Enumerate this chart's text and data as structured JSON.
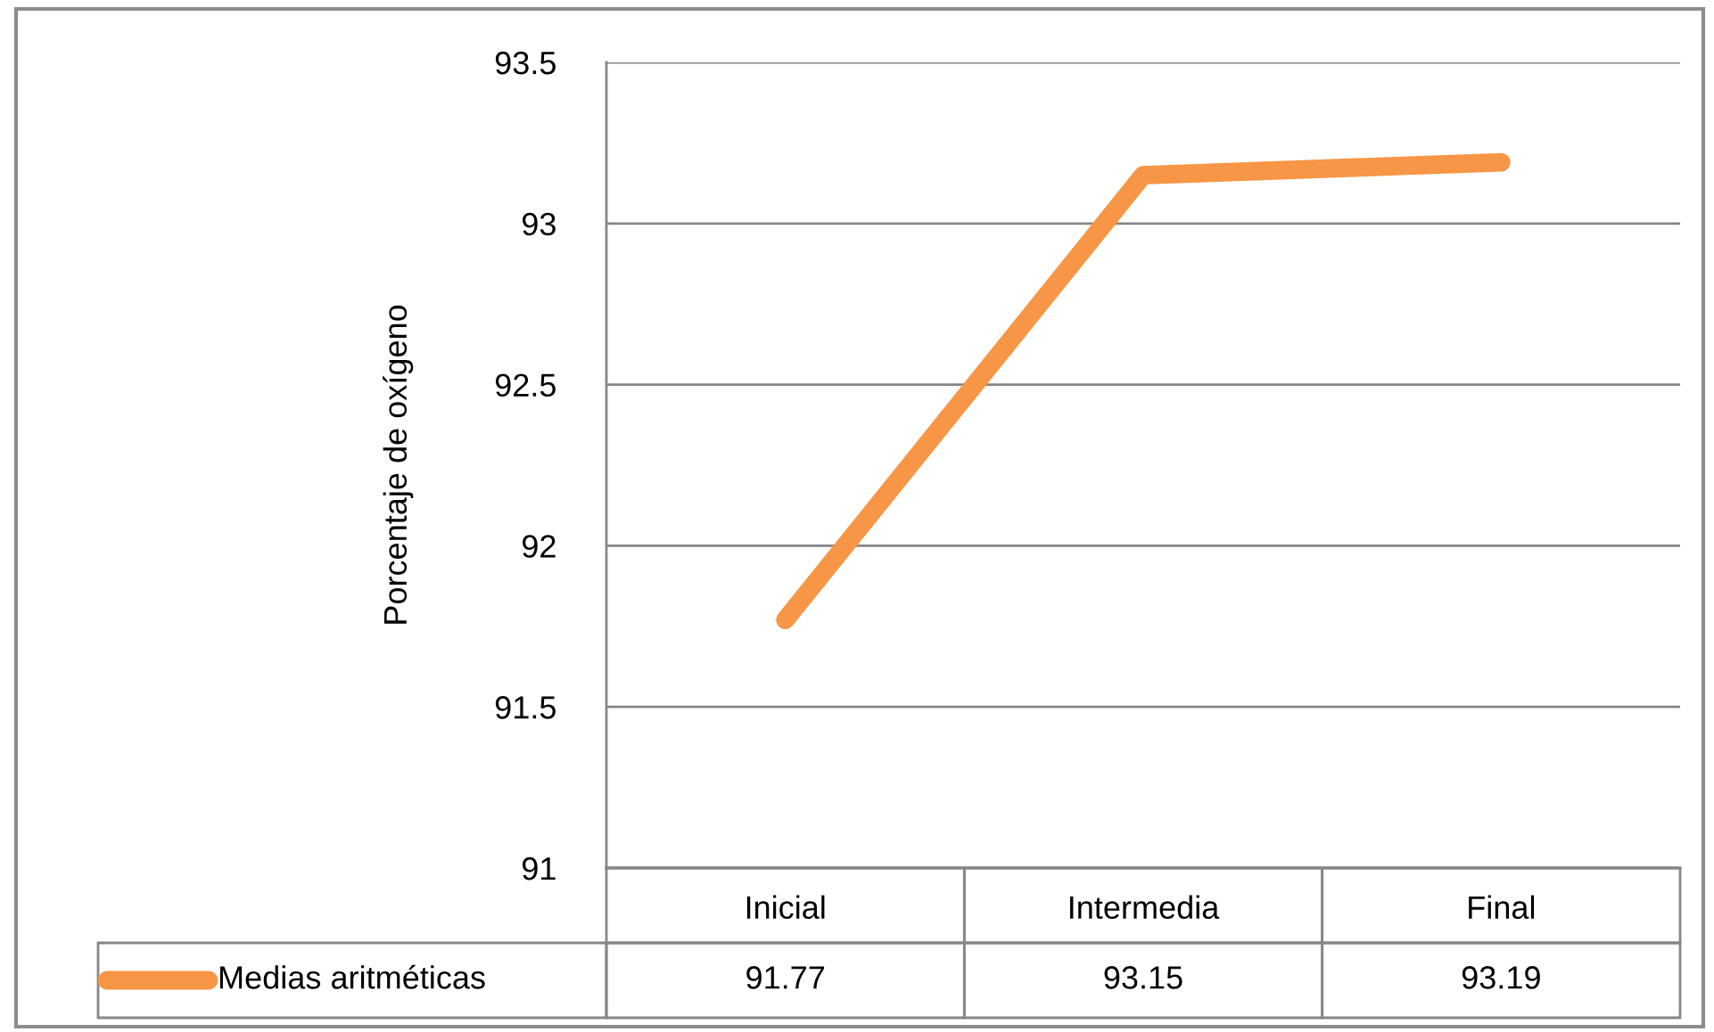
{
  "chart_data": {
    "type": "line",
    "ylabel": "Porcentaje de oxígeno",
    "categories": [
      "Inicial",
      "Intermedia",
      "Final"
    ],
    "series": [
      {
        "name": "Medias aritméticas",
        "color": "#f79646",
        "values": [
          91.77,
          93.15,
          93.19
        ]
      }
    ],
    "ylim": [
      91,
      93.5
    ],
    "yticks": [
      91,
      91.5,
      92,
      92.5,
      93,
      93.5
    ],
    "grid": "y",
    "legend": "bottom",
    "data_labels": true
  }
}
